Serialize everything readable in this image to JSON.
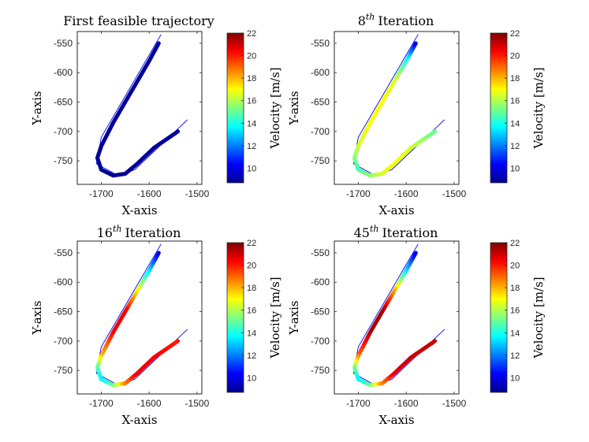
{
  "chart_data": [
    {
      "type": "line",
      "title": "First feasible trajectory",
      "title_sup": "",
      "xlabel": "X-axis",
      "ylabel": "Y-axis",
      "xlim": [
        -1750,
        -1490
      ],
      "ylim": [
        -790,
        -530
      ],
      "xticks": [
        -1700,
        -1600,
        -1500
      ],
      "yticks": [
        -550,
        -600,
        -650,
        -700,
        -750
      ],
      "reference_path": {
        "x": [
          -1575,
          -1700,
          -1710,
          -1665,
          -1630,
          -1520
        ],
        "y": [
          -535,
          -710,
          -755,
          -775,
          -765,
          -680
        ]
      },
      "velocity_profile": [
        9,
        9,
        9,
        9,
        9,
        9,
        9,
        9,
        9,
        9,
        9,
        9,
        9
      ],
      "colorbar": {
        "label": "Velocity [m/s]",
        "range": [
          8.7,
          22
        ],
        "ticks": [
          10,
          12,
          14,
          16,
          18,
          20,
          22
        ]
      }
    },
    {
      "type": "line",
      "title": "Iteration",
      "title_sup": "th",
      "title_num": "8",
      "xlabel": "X-axis",
      "ylabel": "Y-axis",
      "xlim": [
        -1750,
        -1490
      ],
      "ylim": [
        -790,
        -530
      ],
      "xticks": [
        -1700,
        -1600,
        -1500
      ],
      "yticks": [
        -550,
        -600,
        -650,
        -700,
        -750
      ],
      "reference_path": {
        "x": [
          -1575,
          -1700,
          -1710,
          -1665,
          -1630,
          -1520
        ],
        "y": [
          -535,
          -710,
          -755,
          -775,
          -765,
          -680
        ]
      },
      "velocity_profile": [
        9.5,
        14,
        16.5,
        17,
        17,
        16.5,
        15.5,
        14.5,
        15.5,
        16.5,
        17,
        16.5,
        15
      ],
      "colorbar": {
        "label": "Velocity [m/s]",
        "range": [
          8.7,
          22
        ],
        "ticks": [
          10,
          12,
          14,
          16,
          18,
          20,
          22
        ]
      }
    },
    {
      "type": "line",
      "title": "Iteration",
      "title_sup": "th",
      "title_num": "16",
      "xlabel": "X-axis",
      "ylabel": "Y-axis",
      "xlim": [
        -1750,
        -1490
      ],
      "ylim": [
        -790,
        -530
      ],
      "xticks": [
        -1700,
        -1600,
        -1500
      ],
      "yticks": [
        -550,
        -600,
        -650,
        -700,
        -750
      ],
      "reference_path": {
        "x": [
          -1575,
          -1700,
          -1710,
          -1665,
          -1630,
          -1520
        ],
        "y": [
          -535,
          -710,
          -755,
          -775,
          -765,
          -680
        ]
      },
      "velocity_profile": [
        9.5,
        13,
        17,
        20.5,
        20.5,
        18,
        15,
        13.5,
        15,
        18.5,
        20.5,
        20.5,
        20
      ],
      "colorbar": {
        "label": "Velocity [m/s]",
        "range": [
          8.7,
          22
        ],
        "ticks": [
          10,
          12,
          14,
          16,
          18,
          20,
          22
        ]
      }
    },
    {
      "type": "line",
      "title": "Iteration",
      "title_sup": "th",
      "title_num": "45",
      "xlabel": "X-axis",
      "ylabel": "Y-axis",
      "xlim": [
        -1750,
        -1490
      ],
      "ylim": [
        -790,
        -530
      ],
      "xticks": [
        -1700,
        -1600,
        -1500
      ],
      "yticks": [
        -550,
        -600,
        -650,
        -700,
        -750
      ],
      "reference_path": {
        "x": [
          -1575,
          -1700,
          -1710,
          -1665,
          -1630,
          -1520
        ],
        "y": [
          -535,
          -710,
          -755,
          -775,
          -765,
          -680
        ]
      },
      "velocity_profile": [
        9.5,
        13,
        18,
        21.5,
        21.5,
        19,
        15.5,
        13.5,
        15,
        18.5,
        20.5,
        21,
        21
      ],
      "colorbar": {
        "label": "Velocity [m/s]",
        "range": [
          8.7,
          22
        ],
        "ticks": [
          10,
          12,
          14,
          16,
          18,
          20,
          22
        ]
      }
    }
  ],
  "trajectory": {
    "x": [
      -1580,
      -1600,
      -1625,
      -1650,
      -1675,
      -1700,
      -1708,
      -1700,
      -1675,
      -1650,
      -1625,
      -1590,
      -1540
    ],
    "y": [
      -550,
      -580,
      -615,
      -650,
      -685,
      -725,
      -745,
      -765,
      -775,
      -772,
      -755,
      -728,
      -700
    ]
  },
  "colors": {
    "reference_line": "#0000ff",
    "axes": "#262626"
  }
}
